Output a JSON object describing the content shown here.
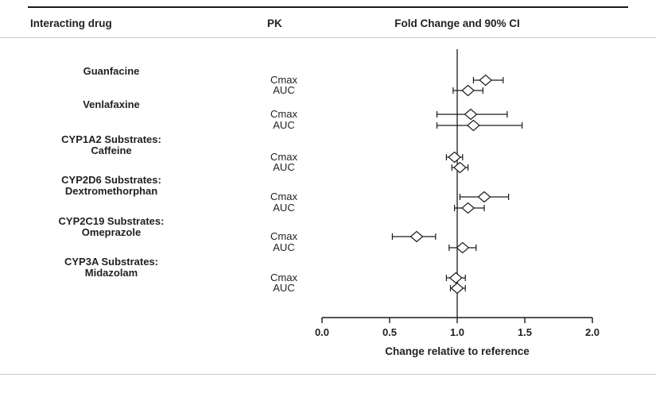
{
  "header": {
    "col_drug": "Interacting drug",
    "col_pk": "PK",
    "col_chart": "Fold Change and 90% CI"
  },
  "chart_data": {
    "type": "scatter",
    "subtype": "forest-plot",
    "title": "Fold Change and 90% CI",
    "xlabel": "Change relative to reference",
    "xlim": [
      0.0,
      2.0
    ],
    "xticks": [
      0.0,
      0.5,
      1.0,
      1.5,
      2.0
    ],
    "reference_line": 1.0,
    "grid": false,
    "marker": "open-diamond",
    "groups": [
      {
        "drug": [
          "Guanfacine"
        ],
        "rows": [
          {
            "pk": "Cmax",
            "est": 1.21,
            "lo": 1.12,
            "hi": 1.34
          },
          {
            "pk": "AUC",
            "est": 1.08,
            "lo": 0.97,
            "hi": 1.19
          }
        ]
      },
      {
        "drug": [
          "Venlafaxine"
        ],
        "rows": [
          {
            "pk": "Cmax",
            "est": 1.1,
            "lo": 0.85,
            "hi": 1.37
          },
          {
            "pk": "AUC",
            "est": 1.12,
            "lo": 0.85,
            "hi": 1.48
          }
        ]
      },
      {
        "drug": [
          "CYP1A2 Substrates:",
          "Caffeine"
        ],
        "rows": [
          {
            "pk": "Cmax",
            "est": 0.98,
            "lo": 0.92,
            "hi": 1.04
          },
          {
            "pk": "AUC",
            "est": 1.02,
            "lo": 0.96,
            "hi": 1.08
          }
        ]
      },
      {
        "drug": [
          "CYP2D6 Substrates:",
          "Dextromethorphan"
        ],
        "rows": [
          {
            "pk": "Cmax",
            "est": 1.2,
            "lo": 1.02,
            "hi": 1.38
          },
          {
            "pk": "AUC",
            "est": 1.08,
            "lo": 0.98,
            "hi": 1.2
          }
        ]
      },
      {
        "drug": [
          "CYP2C19 Substrates:",
          "Omeprazole"
        ],
        "rows": [
          {
            "pk": "Cmax",
            "est": 0.7,
            "lo": 0.52,
            "hi": 0.84
          },
          {
            "pk": "AUC",
            "est": 1.04,
            "lo": 0.94,
            "hi": 1.14
          }
        ]
      },
      {
        "drug": [
          "CYP3A Substrates:",
          "Midazolam"
        ],
        "rows": [
          {
            "pk": "Cmax",
            "est": 0.99,
            "lo": 0.92,
            "hi": 1.06
          },
          {
            "pk": "AUC",
            "est": 1.0,
            "lo": 0.95,
            "hi": 1.06
          }
        ]
      }
    ]
  }
}
